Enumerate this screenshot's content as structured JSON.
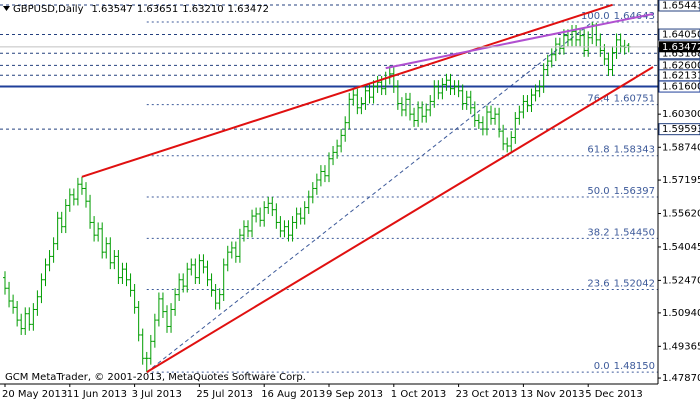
{
  "chart_data": {
    "type": "ohlc",
    "symbol": "GBPUSD,Daily",
    "header_values": [
      1.63547,
      1.63651,
      {
        "value": 1.6321,
        "label": "1.63210"
      },
      1.63472
    ],
    "footer": "GCM MetaTrader, © 2001-2013, MetaQuotes Software Corp.",
    "bar_color": "#009c00",
    "categories": [
      "20 May 2013",
      null,
      null,
      null,
      null,
      null,
      null,
      null,
      null,
      null,
      null,
      null,
      null,
      null,
      null,
      null,
      "11 Jun 2013",
      null,
      null,
      null,
      null,
      null,
      null,
      null,
      null,
      null,
      null,
      null,
      null,
      null,
      null,
      null,
      "3 Jul 2013",
      null,
      null,
      null,
      null,
      null,
      null,
      null,
      null,
      null,
      null,
      null,
      null,
      null,
      null,
      null,
      "25 Jul 2013",
      null,
      null,
      null,
      null,
      null,
      null,
      null,
      null,
      null,
      null,
      null,
      null,
      null,
      null,
      null,
      "16 Aug 2013",
      null,
      null,
      null,
      null,
      null,
      null,
      null,
      null,
      null,
      null,
      null,
      null,
      null,
      null,
      null,
      "9 Sep 2013",
      null,
      null,
      null,
      null,
      null,
      null,
      null,
      null,
      null,
      null,
      null,
      null,
      null,
      null,
      null,
      "1 Oct 2013",
      null,
      null,
      null,
      null,
      null,
      null,
      null,
      null,
      null,
      null,
      null,
      null,
      null,
      null,
      null,
      "23 Oct 2013",
      null,
      null,
      null,
      null,
      null,
      null,
      null,
      null,
      null,
      null,
      null,
      null,
      null,
      null,
      null,
      "13 Nov 2013",
      null,
      null,
      null,
      null,
      null,
      null,
      null,
      null,
      null,
      null,
      null,
      null,
      null,
      null,
      null,
      "5 Dec 2013",
      null,
      null,
      null,
      null,
      null,
      null,
      null,
      null,
      null,
      null
    ],
    "bars": [
      [
        1.526,
        1.529,
        1.518,
        1.521
      ],
      [
        1.521,
        1.524,
        1.512,
        1.515
      ],
      [
        1.515,
        1.518,
        1.509,
        1.512
      ],
      [
        1.512,
        1.515,
        1.503,
        1.506
      ],
      [
        1.506,
        1.509,
        1.499,
        1.502
      ],
      [
        1.502,
        1.512,
        1.499,
        1.509
      ],
      [
        1.509,
        1.512,
        1.501,
        1.504
      ],
      [
        1.504,
        1.514,
        1.501,
        1.511
      ],
      [
        1.511,
        1.52,
        1.508,
        1.517
      ],
      [
        1.517,
        1.528,
        1.514,
        1.525
      ],
      [
        1.525,
        1.535,
        1.522,
        1.532
      ],
      [
        1.532,
        1.539,
        1.529,
        1.536
      ],
      [
        1.536,
        1.545,
        1.533,
        1.542
      ],
      [
        1.542,
        1.557,
        1.539,
        1.554
      ],
      [
        1.554,
        1.557,
        1.547,
        1.55
      ],
      [
        1.55,
        1.563,
        1.547,
        1.56
      ],
      [
        1.56,
        1.568,
        1.557,
        1.565
      ],
      [
        1.565,
        1.568,
        1.56,
        1.563
      ],
      [
        1.563,
        1.573,
        1.56,
        1.57
      ],
      [
        1.57,
        1.5735,
        1.565,
        1.568
      ],
      [
        1.568,
        1.571,
        1.559,
        1.562
      ],
      [
        1.562,
        1.565,
        1.549,
        1.552
      ],
      [
        1.552,
        1.555,
        1.543,
        1.546
      ],
      [
        1.546,
        1.552,
        1.543,
        1.549
      ],
      [
        1.549,
        1.552,
        1.535,
        1.538
      ],
      [
        1.538,
        1.545,
        1.535,
        1.542
      ],
      [
        1.542,
        1.545,
        1.53,
        1.533
      ],
      [
        1.533,
        1.539,
        1.53,
        1.536
      ],
      [
        1.536,
        1.539,
        1.523,
        1.526
      ],
      [
        1.526,
        1.533,
        1.523,
        1.53
      ],
      [
        1.53,
        1.533,
        1.522,
        1.525
      ],
      [
        1.525,
        1.528,
        1.517,
        1.52
      ],
      [
        1.52,
        1.523,
        1.509,
        1.512
      ],
      [
        1.512,
        1.515,
        1.496,
        1.499
      ],
      [
        1.499,
        1.502,
        1.485,
        1.488
      ],
      [
        1.488,
        1.491,
        1.4815,
        1.488
      ],
      [
        1.488,
        1.499,
        1.485,
        1.496
      ],
      [
        1.496,
        1.509,
        1.493,
        1.506
      ],
      [
        1.506,
        1.519,
        1.503,
        1.516
      ],
      [
        1.516,
        1.519,
        1.507,
        1.51
      ],
      [
        1.51,
        1.513,
        1.5,
        1.503
      ],
      [
        1.503,
        1.514,
        1.5,
        1.511
      ],
      [
        1.511,
        1.521,
        1.508,
        1.518
      ],
      [
        1.518,
        1.528,
        1.515,
        1.525
      ],
      [
        1.525,
        1.528,
        1.519,
        1.522
      ],
      [
        1.522,
        1.533,
        1.519,
        1.53
      ],
      [
        1.53,
        1.535,
        1.527,
        1.532
      ],
      [
        1.532,
        1.535,
        1.523,
        1.526
      ],
      [
        1.526,
        1.537,
        1.523,
        1.534
      ],
      [
        1.534,
        1.537,
        1.528,
        1.531
      ],
      [
        1.531,
        1.534,
        1.522,
        1.525
      ],
      [
        1.525,
        1.528,
        1.517,
        1.52
      ],
      [
        1.52,
        1.523,
        1.511,
        1.514
      ],
      [
        1.514,
        1.521,
        1.511,
        1.518
      ],
      [
        1.518,
        1.535,
        1.515,
        1.532
      ],
      [
        1.532,
        1.541,
        1.529,
        1.538
      ],
      [
        1.538,
        1.543,
        1.535,
        1.54
      ],
      [
        1.54,
        1.543,
        1.533,
        1.536
      ],
      [
        1.536,
        1.549,
        1.533,
        1.546
      ],
      [
        1.546,
        1.553,
        1.543,
        1.55
      ],
      [
        1.55,
        1.553,
        1.545,
        1.548
      ],
      [
        1.548,
        1.558,
        1.545,
        1.555
      ],
      [
        1.555,
        1.559,
        1.552,
        1.556
      ],
      [
        1.556,
        1.559,
        1.55,
        1.553
      ],
      [
        1.553,
        1.562,
        1.55,
        1.559
      ],
      [
        1.559,
        1.564,
        1.556,
        1.561
      ],
      [
        1.561,
        1.564,
        1.555,
        1.558
      ],
      [
        1.558,
        1.561,
        1.549,
        1.552
      ],
      [
        1.552,
        1.555,
        1.545,
        1.548
      ],
      [
        1.548,
        1.553,
        1.545,
        1.55
      ],
      [
        1.55,
        1.553,
        1.543,
        1.546
      ],
      [
        1.546,
        1.555,
        1.543,
        1.552
      ],
      [
        1.552,
        1.559,
        1.549,
        1.556
      ],
      [
        1.556,
        1.559,
        1.551,
        1.554
      ],
      [
        1.554,
        1.562,
        1.551,
        1.559
      ],
      [
        1.559,
        1.567,
        1.556,
        1.564
      ],
      [
        1.564,
        1.571,
        1.561,
        1.568
      ],
      [
        1.568,
        1.575,
        1.565,
        1.572
      ],
      [
        1.572,
        1.579,
        1.569,
        1.576
      ],
      [
        1.576,
        1.579,
        1.571,
        1.574
      ],
      [
        1.574,
        1.585,
        1.571,
        1.582
      ],
      [
        1.582,
        1.588,
        1.579,
        1.585
      ],
      [
        1.585,
        1.591,
        1.582,
        1.588
      ],
      [
        1.588,
        1.596,
        1.585,
        1.593
      ],
      [
        1.593,
        1.602,
        1.59,
        1.599
      ],
      [
        1.599,
        1.613,
        1.596,
        1.61
      ],
      [
        1.61,
        1.615,
        1.607,
        1.612
      ],
      [
        1.612,
        1.615,
        1.603,
        1.606
      ],
      [
        1.606,
        1.611,
        1.603,
        1.608
      ],
      [
        1.608,
        1.617,
        1.605,
        1.614
      ],
      [
        1.614,
        1.617,
        1.608,
        1.611
      ],
      [
        1.611,
        1.619,
        1.608,
        1.616
      ],
      [
        1.616,
        1.621,
        1.613,
        1.618
      ],
      [
        1.618,
        1.621,
        1.612,
        1.615
      ],
      [
        1.615,
        1.623,
        1.612,
        1.62
      ],
      [
        1.62,
        1.6259,
        1.617,
        1.622
      ],
      [
        1.622,
        1.625,
        1.613,
        1.616
      ],
      [
        1.616,
        1.619,
        1.605,
        1.608
      ],
      [
        1.608,
        1.611,
        1.602,
        1.605
      ],
      [
        1.605,
        1.613,
        1.602,
        1.61
      ],
      [
        1.61,
        1.613,
        1.6,
        1.603
      ],
      [
        1.603,
        1.606,
        1.597,
        1.6
      ],
      [
        1.6,
        1.609,
        1.597,
        1.606
      ],
      [
        1.606,
        1.609,
        1.599,
        1.602
      ],
      [
        1.602,
        1.608,
        1.599,
        1.605
      ],
      [
        1.605,
        1.612,
        1.602,
        1.609
      ],
      [
        1.609,
        1.619,
        1.606,
        1.616
      ],
      [
        1.616,
        1.619,
        1.61,
        1.613
      ],
      [
        1.613,
        1.62,
        1.61,
        1.617
      ],
      [
        1.617,
        1.622,
        1.614,
        1.619
      ],
      [
        1.619,
        1.622,
        1.612,
        1.615
      ],
      [
        1.615,
        1.619,
        1.612,
        1.616
      ],
      [
        1.616,
        1.619,
        1.611,
        1.614
      ],
      [
        1.614,
        1.617,
        1.605,
        1.608
      ],
      [
        1.608,
        1.614,
        1.605,
        1.611
      ],
      [
        1.611,
        1.614,
        1.603,
        1.606
      ],
      [
        1.606,
        1.609,
        1.597,
        1.6
      ],
      [
        1.6,
        1.603,
        1.596,
        1.599
      ],
      [
        1.599,
        1.602,
        1.593,
        1.596
      ],
      [
        1.596,
        1.607,
        1.593,
        1.604
      ],
      [
        1.604,
        1.607,
        1.598,
        1.601
      ],
      [
        1.601,
        1.606,
        1.598,
        1.603
      ],
      [
        1.603,
        1.606,
        1.592,
        1.595
      ],
      [
        1.595,
        1.598,
        1.586,
        1.589
      ],
      [
        1.589,
        1.592,
        1.585,
        1.588
      ],
      [
        1.588,
        1.595,
        1.585,
        1.592
      ],
      [
        1.592,
        1.604,
        1.589,
        1.601
      ],
      [
        1.601,
        1.607,
        1.598,
        1.604
      ],
      [
        1.604,
        1.612,
        1.601,
        1.609
      ],
      [
        1.609,
        1.612,
        1.604,
        1.607
      ],
      [
        1.607,
        1.615,
        1.604,
        1.612
      ],
      [
        1.612,
        1.617,
        1.609,
        1.614
      ],
      [
        1.614,
        1.619,
        1.611,
        1.616
      ],
      [
        1.616,
        1.627,
        1.613,
        1.624
      ],
      [
        1.624,
        1.631,
        1.621,
        1.628
      ],
      [
        1.628,
        1.634,
        1.625,
        1.631
      ],
      [
        1.631,
        1.639,
        1.628,
        1.636
      ],
      [
        1.636,
        1.639,
        1.631,
        1.634
      ],
      [
        1.634,
        1.643,
        1.631,
        1.64
      ],
      [
        1.64,
        1.643,
        1.635,
        1.638
      ],
      [
        1.638,
        1.645,
        1.635,
        1.642
      ],
      [
        1.642,
        1.645,
        1.635,
        1.638
      ],
      [
        1.638,
        1.643,
        1.635,
        1.64
      ],
      [
        1.64,
        1.643,
        1.63,
        1.633
      ],
      [
        1.633,
        1.642,
        1.63,
        1.639
      ],
      [
        1.639,
        1.6464,
        1.636,
        1.645
      ],
      [
        1.645,
        1.646,
        1.635,
        1.638
      ],
      [
        1.638,
        1.641,
        1.63,
        1.633
      ],
      [
        1.633,
        1.636,
        1.626,
        1.629
      ],
      [
        1.629,
        1.632,
        1.621,
        1.624
      ],
      [
        1.624,
        1.635,
        1.621,
        1.632
      ],
      [
        1.632,
        1.641,
        1.629,
        1.638
      ],
      [
        1.638,
        1.641,
        1.632,
        1.635
      ],
      [
        1.635,
        1.638,
        1.631,
        1.6345
      ],
      [
        1.63547,
        1.63651,
        1.6321,
        1.63472
      ]
    ],
    "ylim": [
      1.4759,
      1.6563
    ],
    "yticks": [
      {
        "value": 1.603,
        "label": "1.60300"
      },
      {
        "value": 1.5874,
        "label": "1.58740"
      },
      1.57195,
      {
        "value": 1.5562,
        "label": "1.55620"
      },
      1.54045,
      {
        "value": 1.5247,
        "label": "1.52470"
      },
      {
        "value": 1.5094,
        "label": "1.50940"
      },
      1.49365,
      {
        "value": 1.4787,
        "label": "1.47870"
      }
    ],
    "hlines": [
      {
        "price": 1.65443,
        "style": "dashed",
        "color": "#24407f"
      },
      {
        "price": {
          "value": 1.6405,
          "label": "1.64050"
        },
        "style": "dashed",
        "color": "#24407f"
      },
      {
        "price": 1.63168,
        "style": "dashed",
        "color": "#24407f"
      },
      {
        "price": {
          "value": 1.626,
          "label": "1.62600"
        },
        "style": "dashed",
        "color": "#24407f"
      },
      {
        "price": 1.62131,
        "style": "dashed",
        "color": "#24407f"
      },
      {
        "price": {
          "value": 1.616,
          "label": "1.61600"
        },
        "style": "solid",
        "color": "#1f3f9a"
      },
      {
        "price": 1.59593,
        "style": "dashed",
        "color": "#24407f"
      }
    ],
    "last_price": 1.63472,
    "fibo": {
      "color": "#3d5a9a",
      "from": [
        35,
        1.4815
      ],
      "to": [
        145,
        1.6464
      ],
      "levels": [
        {
          "ratio": "100.0",
          "price": 1.64643
        },
        {
          "ratio": "76.4",
          "price": 1.60751
        },
        {
          "ratio": "61.8",
          "price": 1.58343
        },
        {
          "ratio": "50.0",
          "price": 1.56397
        },
        {
          "ratio": "38.2",
          "price": {
            "value": 1.5445,
            "label": "1.54450"
          }
        },
        {
          "ratio": "23.6",
          "price": 1.52042
        },
        {
          "ratio": "0.0",
          "price": {
            "value": 1.4815,
            "label": "1.48150"
          }
        }
      ]
    },
    "trendlines": [
      {
        "color": "#e01010",
        "points": [
          [
            19,
            1.5735
          ],
          [
            150,
            1.6545
          ]
        ]
      },
      {
        "color": "#e01010",
        "points": [
          [
            35,
            1.4815
          ],
          [
            160,
            1.6252
          ]
        ]
      },
      {
        "color": "#b050d0",
        "points": [
          [
            94,
            1.6247
          ],
          [
            160,
            1.6502
          ]
        ]
      }
    ]
  }
}
